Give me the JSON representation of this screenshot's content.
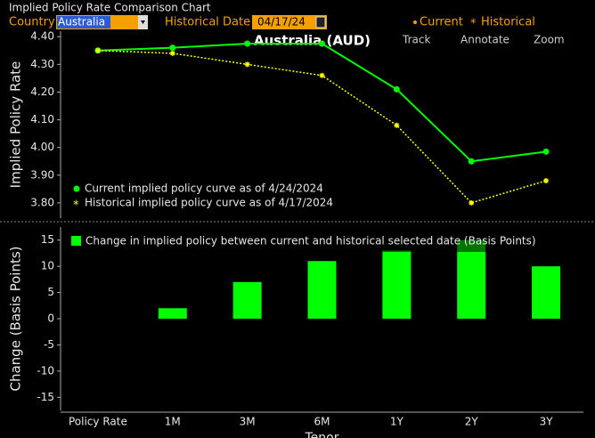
{
  "header": {
    "title": "Implied Policy Rate Comparison Chart",
    "country_label": "Country",
    "country": "Australia",
    "date_label": "Historical Date",
    "date": "04/17/24"
  },
  "toolbar": {
    "annotation": "Australia (AUD)",
    "track": "Track",
    "annotate": "Annotate",
    "zoom": "Zoom"
  },
  "chart_data": [
    {
      "type": "line",
      "ylabel": "Implied Policy Rate",
      "categories": [
        "Policy Rate",
        "1M",
        "3M",
        "6M",
        "1Y",
        "2Y",
        "3Y"
      ],
      "series": [
        {
          "name": "Current",
          "description": "Current implied policy curve as of 4/24/2024",
          "color": "#00ff00",
          "values": [
            4.35,
            4.36,
            4.375,
            4.375,
            4.21,
            3.95,
            3.985
          ]
        },
        {
          "name": "Historical",
          "description": "Historical implied policy curve as of 4/17/2024",
          "color": "#ffff00",
          "values": [
            4.35,
            4.34,
            4.3,
            4.26,
            4.08,
            3.8,
            3.88
          ]
        }
      ],
      "ylim": [
        3.745,
        4.42
      ],
      "yticks": [
        {
          "value": 3.8,
          "label": "3.80"
        },
        {
          "value": 3.9,
          "label": "3.90"
        },
        {
          "value": 4.0,
          "label": "4.00"
        },
        {
          "value": 4.1,
          "label": "4.10"
        },
        {
          "value": 4.2,
          "label": "4.20"
        },
        {
          "value": 4.3,
          "label": "4.30"
        },
        {
          "value": 4.4,
          "label": "4.40"
        }
      ]
    },
    {
      "type": "bar",
      "ylabel": "Change (Basis Points)",
      "xlabel": "Tenor",
      "categories": [
        "Policy Rate",
        "1M",
        "3M",
        "6M",
        "1Y",
        "2Y",
        "3Y"
      ],
      "series": [
        {
          "name": "Change in implied policy between current and historical selected date (Basis Points)",
          "color": "#00ff00",
          "values": [
            0,
            2,
            7,
            11,
            13,
            15,
            10
          ]
        }
      ],
      "ylim": [
        -17.5,
        17.5
      ],
      "yticks": [
        -15,
        -10,
        -5,
        0,
        5,
        10,
        15
      ]
    }
  ]
}
